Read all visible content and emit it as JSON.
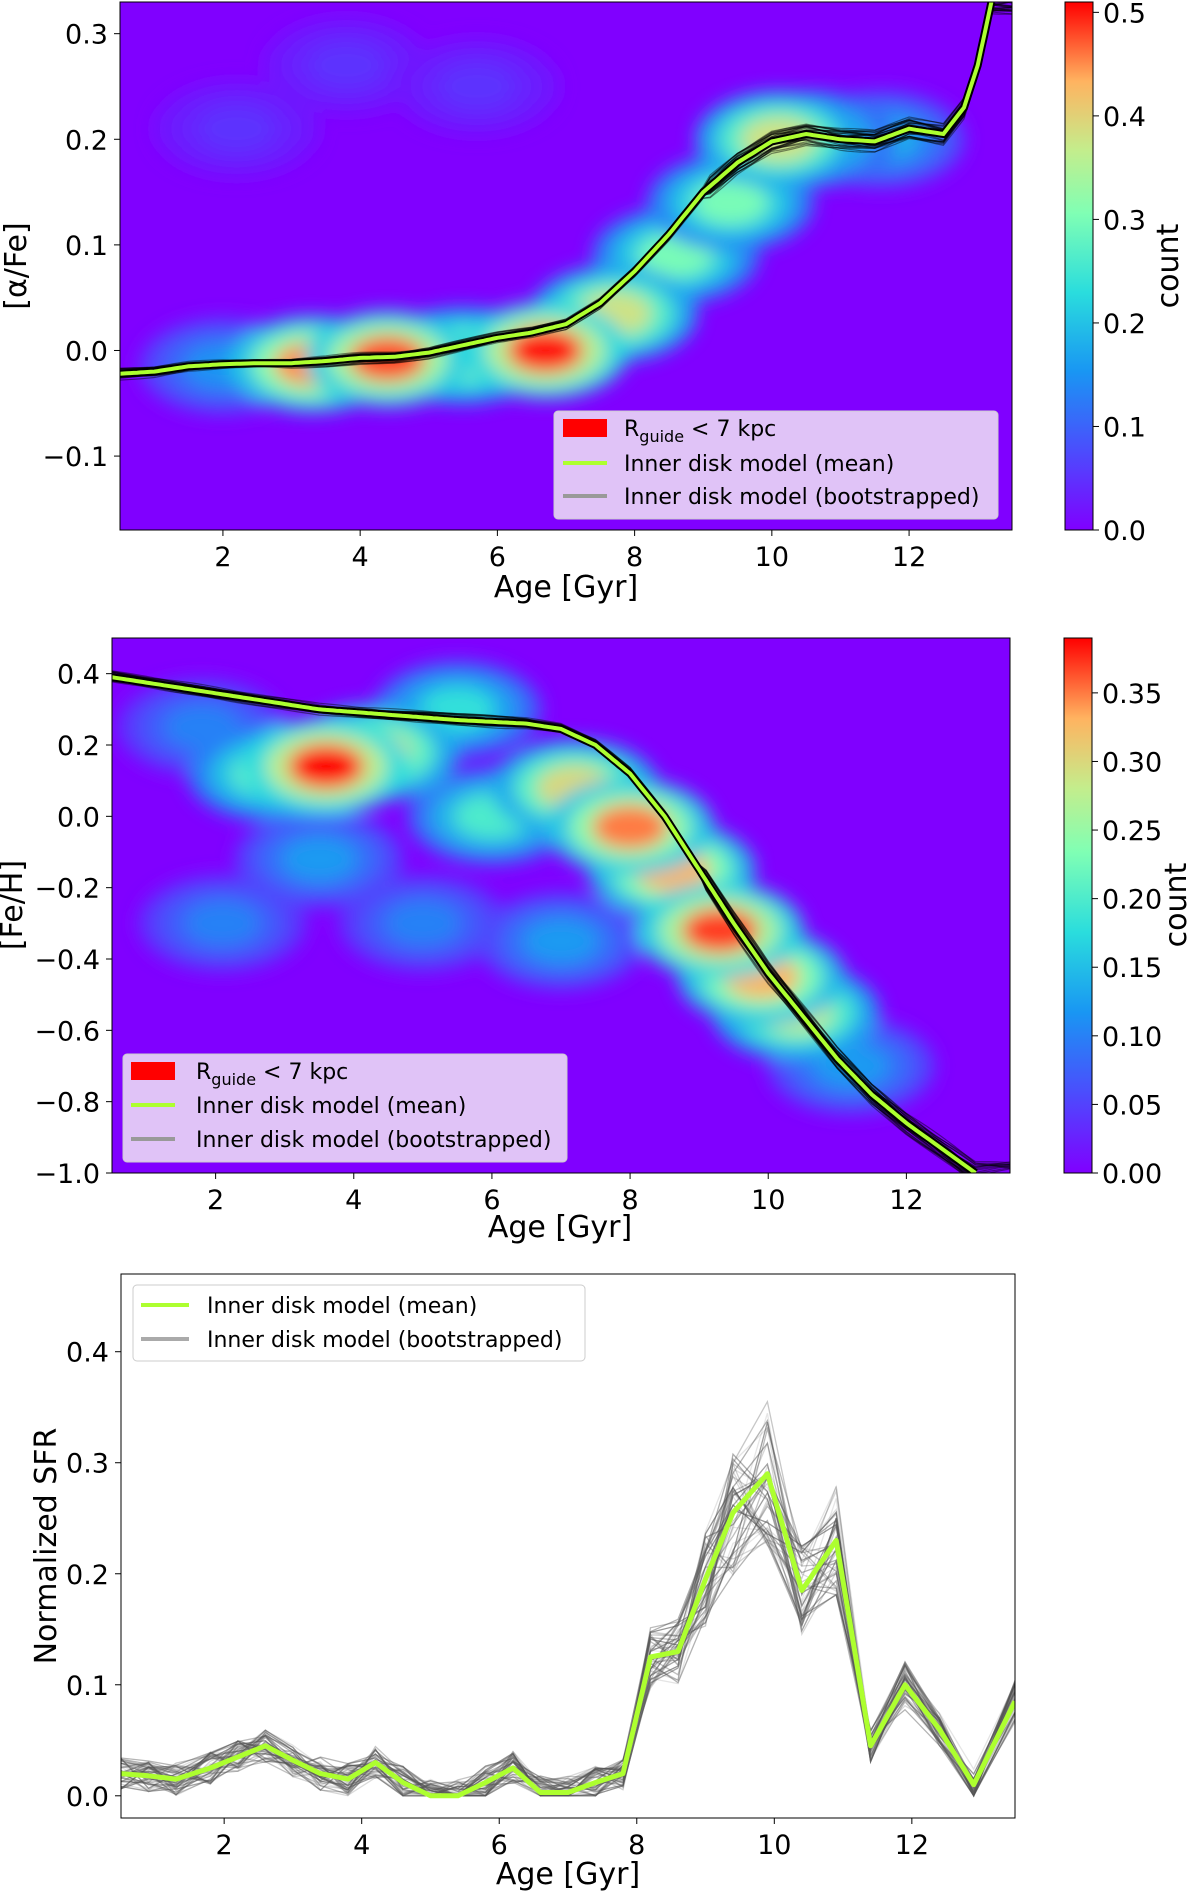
{
  "chart_data": [
    {
      "type": "heatmap",
      "xlabel": "Age [Gyr]",
      "ylabel": "[α/Fe]",
      "xlim": [
        0.5,
        13.5
      ],
      "ylim": [
        -0.17,
        0.33
      ],
      "xticks": [
        "2",
        "4",
        "6",
        "8",
        "10",
        "12"
      ],
      "yticks": [
        "−0.1",
        "0.0",
        "0.1",
        "0.2",
        "0.3"
      ],
      "colorbar": {
        "label": "count",
        "ticks": [
          "0.0",
          "0.1",
          "0.2",
          "0.3",
          "0.4",
          "0.5"
        ],
        "range": [
          0,
          0.51
        ]
      },
      "legend": {
        "position": "lower right",
        "entries": [
          {
            "label_main": "R",
            "label_sub": "guide",
            "label_rest": " < 7 kpc",
            "style": "patch",
            "color": "#ff0000"
          },
          {
            "label": "Inner disk model (mean)",
            "style": "line",
            "color": "#adff2f"
          },
          {
            "label": "Inner disk model (bootstrapped)",
            "style": "line",
            "color": "#999999"
          }
        ]
      },
      "mean_curve": {
        "x": [
          0.5,
          1.0,
          1.5,
          2.0,
          2.5,
          3.0,
          3.5,
          4.0,
          4.5,
          5.0,
          5.5,
          6.0,
          6.5,
          7.0,
          7.5,
          8.0,
          8.5,
          9.0,
          9.5,
          10.0,
          10.5,
          11.0,
          11.5,
          12.0,
          12.5,
          12.8,
          13.0,
          13.2
        ],
        "y": [
          -0.022,
          -0.02,
          -0.015,
          -0.013,
          -0.012,
          -0.012,
          -0.01,
          -0.007,
          -0.006,
          -0.002,
          0.005,
          0.012,
          0.017,
          0.025,
          0.045,
          0.075,
          0.11,
          0.15,
          0.178,
          0.198,
          0.205,
          0.2,
          0.198,
          0.21,
          0.205,
          0.23,
          0.27,
          0.33
        ]
      },
      "density_blobs": [
        {
          "x": 3.3,
          "y": -0.013,
          "v": 0.45
        },
        {
          "x": 4.4,
          "y": -0.008,
          "v": 0.48
        },
        {
          "x": 5.5,
          "y": -0.005,
          "v": 0.35
        },
        {
          "x": 6.7,
          "y": 0.0,
          "v": 0.5
        },
        {
          "x": 7.7,
          "y": 0.035,
          "v": 0.38
        },
        {
          "x": 8.6,
          "y": 0.09,
          "v": 0.3
        },
        {
          "x": 9.4,
          "y": 0.14,
          "v": 0.3
        },
        {
          "x": 10.1,
          "y": 0.2,
          "v": 0.38
        },
        {
          "x": 10.6,
          "y": 0.2,
          "v": 0.25
        },
        {
          "x": 11.6,
          "y": 0.2,
          "v": 0.18
        },
        {
          "x": 2.0,
          "y": -0.015,
          "v": 0.15
        },
        {
          "x": 2.2,
          "y": 0.21,
          "v": 0.05
        },
        {
          "x": 3.8,
          "y": 0.27,
          "v": 0.05
        },
        {
          "x": 5.7,
          "y": 0.25,
          "v": 0.05
        }
      ]
    },
    {
      "type": "heatmap",
      "xlabel": "Age [Gyr]",
      "ylabel": "[Fe/H]",
      "xlim": [
        0.5,
        13.5
      ],
      "ylim": [
        -1.0,
        0.5
      ],
      "xticks": [
        "2",
        "4",
        "6",
        "8",
        "10",
        "12"
      ],
      "yticks": [
        "−1.0",
        "−0.8",
        "−0.6",
        "−0.4",
        "−0.2",
        "0.0",
        "0.2",
        "0.4"
      ],
      "colorbar": {
        "label": "count",
        "ticks": [
          "0.00",
          "0.05",
          "0.10",
          "0.15",
          "0.20",
          "0.25",
          "0.30",
          "0.35"
        ],
        "range": [
          0,
          0.39
        ]
      },
      "legend": {
        "position": "lower left",
        "entries": [
          {
            "label_main": "R",
            "label_sub": "guide",
            "label_rest": " < 7 kpc",
            "style": "patch",
            "color": "#ff0000"
          },
          {
            "label": "Inner disk model (mean)",
            "style": "line",
            "color": "#adff2f"
          },
          {
            "label": "Inner disk model (bootstrapped)",
            "style": "line",
            "color": "#999999"
          }
        ]
      },
      "mean_curve": {
        "x": [
          0.5,
          1.5,
          2.5,
          3.5,
          4.5,
          5.5,
          6.5,
          7.0,
          7.5,
          8.0,
          8.5,
          9.0,
          9.5,
          10.0,
          10.5,
          11.0,
          11.5,
          12.0,
          12.5,
          13.0
        ],
        "y": [
          0.39,
          0.36,
          0.33,
          0.3,
          0.285,
          0.27,
          0.26,
          0.245,
          0.2,
          0.12,
          0.0,
          -0.15,
          -0.3,
          -0.44,
          -0.56,
          -0.68,
          -0.78,
          -0.86,
          -0.93,
          -1.0
        ]
      },
      "density_blobs": [
        {
          "x": 3.6,
          "y": 0.14,
          "v": 0.39
        },
        {
          "x": 4.3,
          "y": 0.18,
          "v": 0.3
        },
        {
          "x": 2.8,
          "y": 0.12,
          "v": 0.22
        },
        {
          "x": 7.2,
          "y": 0.08,
          "v": 0.3
        },
        {
          "x": 8.0,
          "y": -0.03,
          "v": 0.35
        },
        {
          "x": 8.6,
          "y": -0.15,
          "v": 0.33
        },
        {
          "x": 9.3,
          "y": -0.32,
          "v": 0.37
        },
        {
          "x": 9.9,
          "y": -0.45,
          "v": 0.33
        },
        {
          "x": 10.4,
          "y": -0.55,
          "v": 0.28
        },
        {
          "x": 6.0,
          "y": 0.0,
          "v": 0.2
        },
        {
          "x": 5.5,
          "y": 0.3,
          "v": 0.18
        },
        {
          "x": 11.2,
          "y": -0.7,
          "v": 0.12
        },
        {
          "x": 2.1,
          "y": -0.3,
          "v": 0.1
        },
        {
          "x": 3.5,
          "y": -0.12,
          "v": 0.12
        },
        {
          "x": 5.0,
          "y": -0.3,
          "v": 0.1
        },
        {
          "x": 7.0,
          "y": -0.35,
          "v": 0.12
        },
        {
          "x": 1.8,
          "y": 0.25,
          "v": 0.1
        }
      ]
    },
    {
      "type": "line",
      "xlabel": "Age [Gyr]",
      "ylabel": "Normalized SFR",
      "xlim": [
        0.5,
        13.5
      ],
      "ylim": [
        -0.02,
        0.47
      ],
      "xticks": [
        "2",
        "4",
        "6",
        "8",
        "10",
        "12"
      ],
      "yticks": [
        "0.0",
        "0.1",
        "0.2",
        "0.3",
        "0.4"
      ],
      "legend": {
        "position": "upper left",
        "entries": [
          {
            "label": "Inner disk model (mean)",
            "style": "line",
            "color": "#adff2f"
          },
          {
            "label": "Inner disk model (bootstrapped)",
            "style": "line",
            "color": "#999999"
          }
        ]
      },
      "series": [
        {
          "name": "Inner disk model (mean)",
          "x": [
            0.5,
            0.9,
            1.3,
            1.8,
            2.2,
            2.6,
            3.0,
            3.4,
            3.8,
            4.2,
            4.6,
            5.0,
            5.4,
            5.8,
            6.2,
            6.6,
            7.0,
            7.4,
            7.8,
            8.2,
            8.6,
            9.0,
            9.4,
            9.9,
            10.4,
            10.9,
            11.4,
            11.9,
            12.4,
            12.9,
            13.5
          ],
          "y": [
            0.02,
            0.018,
            0.015,
            0.025,
            0.035,
            0.045,
            0.032,
            0.02,
            0.015,
            0.03,
            0.012,
            0.0,
            0.0,
            0.012,
            0.025,
            0.003,
            0.003,
            0.012,
            0.02,
            0.125,
            0.13,
            0.195,
            0.255,
            0.29,
            0.185,
            0.23,
            0.045,
            0.1,
            0.06,
            0.01,
            0.085
          ]
        }
      ]
    }
  ]
}
